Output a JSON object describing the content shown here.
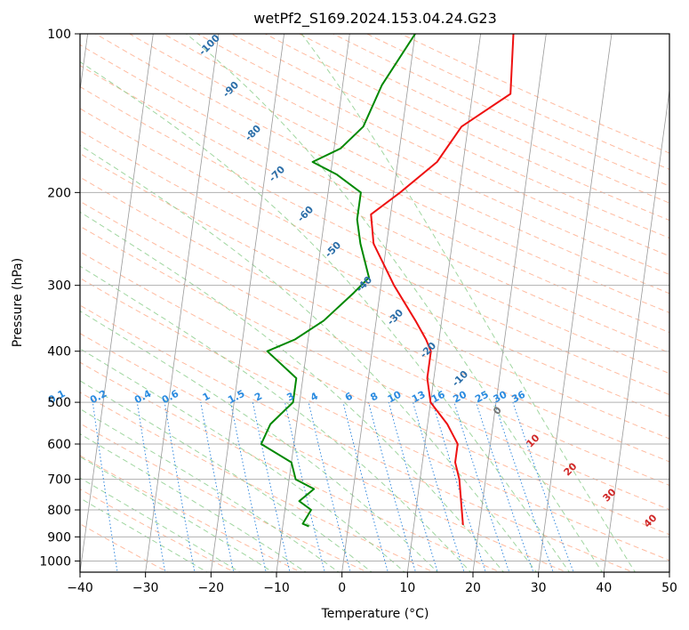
{
  "chart_data": {
    "type": "line",
    "title": "wetPf2_S169.2024.153.04.24.G23",
    "xlabel": "Temperature (°C)",
    "ylabel": "Pressure (hPa)",
    "xlim": [
      -40,
      50
    ],
    "ylim": [
      1050,
      100
    ],
    "y_scale": "log",
    "x_ticks": [
      -40,
      -30,
      -20,
      -10,
      0,
      10,
      20,
      30,
      40,
      50
    ],
    "y_ticks": [
      100,
      200,
      300,
      400,
      500,
      600,
      700,
      800,
      900,
      1000
    ],
    "grid": true,
    "series": [
      {
        "color": "#ee1111",
        "values": [
          [
            15,
            100
          ],
          [
            15.8,
            130
          ],
          [
            9,
            150
          ],
          [
            6,
            175
          ],
          [
            1,
            200
          ],
          [
            -3,
            220
          ],
          [
            -2,
            250
          ],
          [
            2,
            300
          ],
          [
            6,
            350
          ],
          [
            8,
            380
          ],
          [
            9,
            400
          ],
          [
            9,
            450
          ],
          [
            10,
            500
          ],
          [
            13,
            550
          ],
          [
            15,
            600
          ],
          [
            15,
            650
          ],
          [
            16,
            700
          ],
          [
            17,
            800
          ],
          [
            17.5,
            855
          ]
        ]
      },
      {
        "color": "#008800",
        "values": [
          [
            0,
            100
          ],
          [
            -4,
            125
          ],
          [
            -6,
            150
          ],
          [
            -9,
            165
          ],
          [
            -13,
            175
          ],
          [
            -9,
            185
          ],
          [
            -5,
            200
          ],
          [
            -5,
            225
          ],
          [
            -4,
            250
          ],
          [
            -2,
            290
          ],
          [
            -4,
            310
          ],
          [
            -8,
            350
          ],
          [
            -12,
            380
          ],
          [
            -16,
            400
          ],
          [
            -11,
            450
          ],
          [
            -11,
            500
          ],
          [
            -14,
            550
          ],
          [
            -15,
            600
          ],
          [
            -10,
            650
          ],
          [
            -9,
            700
          ],
          [
            -6,
            730
          ],
          [
            -8,
            770
          ],
          [
            -6,
            800
          ],
          [
            -7,
            850
          ],
          [
            -6,
            860
          ]
        ]
      }
    ],
    "isotherm_color": "#999999",
    "dry_adiabat_color": "#ffaa88",
    "moist_adiabat_color": "#88cc88",
    "mixing_ratio_color": "#3388dd",
    "isotherm_labels": [
      "-100",
      "-90",
      "-80",
      "-70",
      "-60",
      "-50",
      "-40",
      "-30",
      "-20",
      "-10",
      "0",
      "10",
      "20",
      "30",
      "40"
    ],
    "mixing_ratio_labels": [
      "0.1",
      "0.2",
      "0.4",
      "0.6",
      "1",
      "1.5",
      "2",
      "3",
      "4",
      "6",
      "8",
      "10",
      "13",
      "16",
      "20",
      "25",
      "30",
      "36"
    ]
  }
}
